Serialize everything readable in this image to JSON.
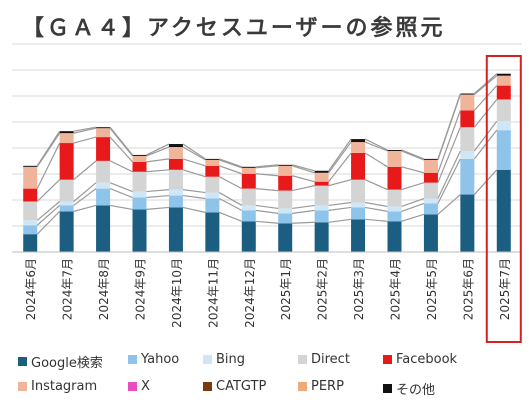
{
  "title": "【ＧＡ４】アクセスユーザーの参照元",
  "chart_data": {
    "type": "bar",
    "stacked": true,
    "categories": [
      "2024年6月",
      "2024年7月",
      "2024年8月",
      "2024年9月",
      "2024年10月",
      "2024年11月",
      "2024年12月",
      "2025年1月",
      "2025年2月",
      "2025年3月",
      "2025年4月",
      "2025年5月",
      "2025年6月",
      "2025年7月"
    ],
    "series": [
      {
        "name": "Google検索",
        "color": "#1b5e82",
        "values": [
          18,
          41,
          47,
          43,
          45,
          40,
          31,
          29,
          30,
          33,
          31,
          38,
          58,
          83
        ]
      },
      {
        "name": "Yahoo",
        "color": "#8ec3ea",
        "values": [
          9,
          6,
          17,
          12,
          12,
          14,
          11,
          10,
          12,
          12,
          10,
          11,
          36,
          40
        ]
      },
      {
        "name": "Bing",
        "color": "#cfe6f6",
        "values": [
          5,
          4,
          6,
          6,
          6,
          6,
          5,
          5,
          5,
          5,
          5,
          5,
          8,
          9
        ]
      },
      {
        "name": "Direct",
        "color": "#d4d4d4",
        "values": [
          19,
          22,
          22,
          20,
          20,
          16,
          17,
          18,
          20,
          23,
          17,
          16,
          24,
          22
        ]
      },
      {
        "name": "Facebook",
        "color": "#e8191b",
        "values": [
          13,
          37,
          24,
          10,
          11,
          11,
          15,
          15,
          4,
          27,
          23,
          10,
          17,
          14
        ]
      },
      {
        "name": "Instagram",
        "color": "#f0b49a",
        "values": [
          22,
          10,
          9,
          6,
          12,
          6,
          6,
          10,
          9,
          11,
          16,
          13,
          16,
          10
        ]
      },
      {
        "name": "X",
        "color": "#e84ec2",
        "values": [
          0,
          0,
          0,
          0,
          0,
          0,
          0,
          0,
          0,
          0,
          0,
          0,
          0,
          0
        ]
      },
      {
        "name": "CATGTP",
        "color": "#7a3a10",
        "values": [
          0,
          0,
          0,
          0,
          0,
          0,
          0,
          0,
          0,
          0,
          0,
          0,
          0,
          0
        ]
      },
      {
        "name": "PERP",
        "color": "#eeaa7a",
        "values": [
          0,
          0,
          0,
          0,
          0,
          0,
          0,
          0,
          0,
          0,
          0,
          0,
          0,
          0
        ]
      },
      {
        "name": "その他",
        "color": "#111111",
        "values": [
          1,
          2,
          1,
          1,
          3,
          1,
          1,
          1,
          2,
          3,
          1,
          1,
          1,
          2
        ]
      }
    ],
    "ylim": [
      0,
      210
    ],
    "grid": true,
    "legend_position": "bottom",
    "highlight_category": "2025年7月",
    "highlight_color": "#d92020"
  }
}
